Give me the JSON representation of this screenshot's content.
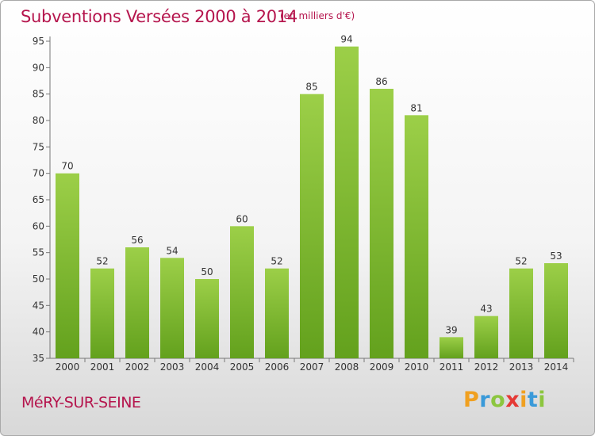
{
  "header": {
    "title": "Subventions Versées 2000 à 2014",
    "unit_note": "(en milliers d'€)"
  },
  "footer": {
    "city": "MéRY-SUR-SEINE",
    "brand_letters": [
      "P",
      "r",
      "o",
      "x",
      "i",
      "t",
      "i"
    ],
    "brand_colors": [
      "#f0a020",
      "#3a9ad9",
      "#8cc63f",
      "#e53935",
      "#f0a020",
      "#3a9ad9",
      "#8cc63f"
    ]
  },
  "colors": {
    "title": "#b5154d",
    "bar_light": "#9ccf48",
    "bar_dark": "#63a11d",
    "axis": "#777777"
  },
  "chart_data": {
    "type": "bar",
    "title": "Subventions Versées 2000 à 2014",
    "subtitle": "(en milliers d'€)",
    "categories": [
      "2000",
      "2001",
      "2002",
      "2003",
      "2004",
      "2005",
      "2006",
      "2007",
      "2008",
      "2009",
      "2010",
      "2011",
      "2012",
      "2013",
      "2014"
    ],
    "values": [
      70,
      52,
      56,
      54,
      50,
      60,
      52,
      85,
      94,
      86,
      81,
      39,
      43,
      52,
      53
    ],
    "ylim": [
      35,
      95
    ],
    "yticks": [
      35,
      40,
      45,
      50,
      55,
      60,
      65,
      70,
      75,
      80,
      85,
      90,
      95
    ],
    "grid": false,
    "data_labels": true
  }
}
